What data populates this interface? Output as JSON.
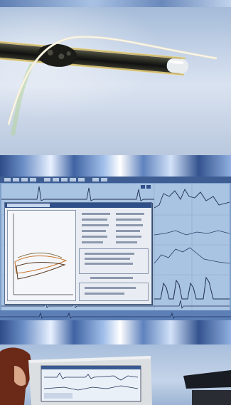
{
  "panels": [
    {
      "name": "catheter-photo",
      "depicts": "catheter-tip-with-sensor"
    },
    {
      "name": "monitoring-software",
      "depicts": "waveform-analysis-screen"
    },
    {
      "name": "operator-at-monitor",
      "depicts": "person-viewing-crt-monitor"
    }
  ],
  "colors": {
    "band_dark": "#2e4c88",
    "band_light": "#e8f1ff",
    "trace_dark": "#1f2f55",
    "trace_orange": "#c8762a",
    "grid_blue": "#9fb7d6",
    "background": "#8fa6c4"
  },
  "icons": [
    "toolbar-button-icon",
    "waveform-trace",
    "catheter-sensor"
  ]
}
